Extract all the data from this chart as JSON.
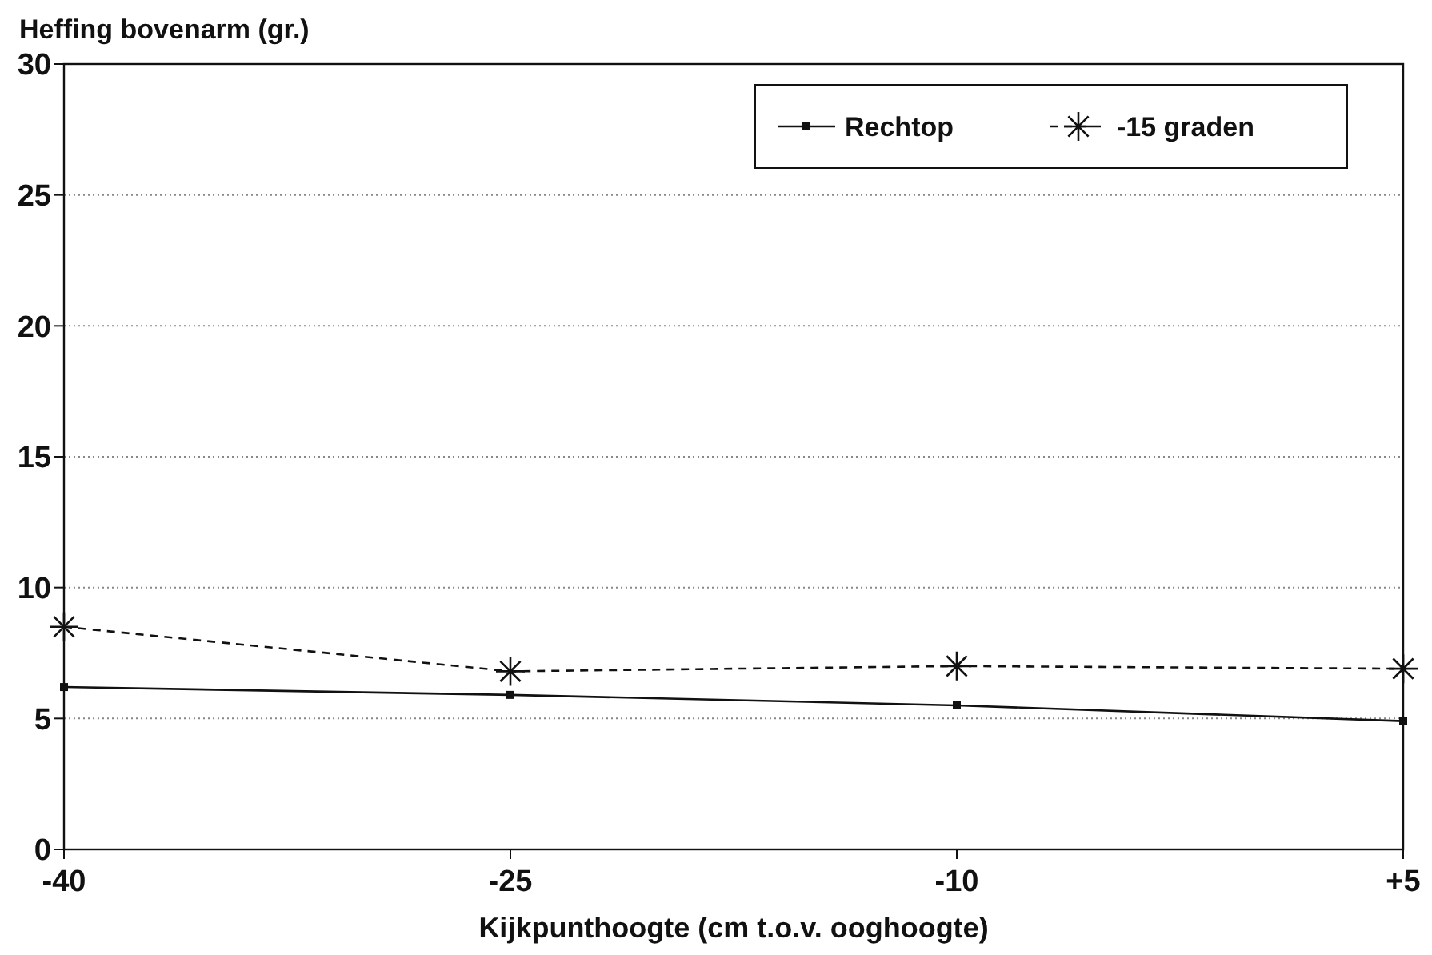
{
  "chart_data": {
    "type": "line",
    "ylabel": "Heffing bovenarm (gr.)",
    "xlabel": "Kijkpunthoogte (cm t.o.v. ooghoogte)",
    "x": [
      -40,
      -25,
      -10,
      5
    ],
    "xlim": [
      -40,
      5
    ],
    "xticks": [
      -40,
      -25,
      -10,
      {
        "value": 5,
        "label": "+5"
      }
    ],
    "ylim": [
      0,
      30
    ],
    "yticks": [
      0,
      5,
      10,
      15,
      20,
      25,
      30
    ],
    "grid": "y",
    "legend": "top right",
    "series": [
      {
        "name": "Rechtop",
        "color": "#111111",
        "marker": "square",
        "line_style": "solid",
        "values": [
          6.2,
          5.9,
          5.5,
          4.9
        ]
      },
      {
        "name": "-15 graden",
        "color": "#111111",
        "marker": "cross",
        "line_style": "dashed",
        "values": [
          8.5,
          6.8,
          7.0,
          6.9
        ]
      }
    ]
  }
}
